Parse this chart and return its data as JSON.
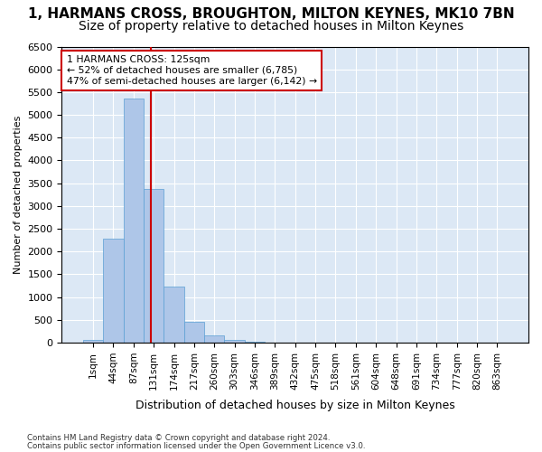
{
  "title1": "1, HARMANS CROSS, BROUGHTON, MILTON KEYNES, MK10 7BN",
  "title2": "Size of property relative to detached houses in Milton Keynes",
  "xlabel": "Distribution of detached houses by size in Milton Keynes",
  "ylabel": "Number of detached properties",
  "footer1": "Contains HM Land Registry data © Crown copyright and database right 2024.",
  "footer2": "Contains public sector information licensed under the Open Government Licence v3.0.",
  "bin_labels": [
    "1sqm",
    "44sqm",
    "87sqm",
    "131sqm",
    "174sqm",
    "217sqm",
    "260sqm",
    "303sqm",
    "346sqm",
    "389sqm",
    "432sqm",
    "475sqm",
    "518sqm",
    "561sqm",
    "604sqm",
    "648sqm",
    "691sqm",
    "734sqm",
    "777sqm",
    "820sqm",
    "863sqm"
  ],
  "bar_values": [
    60,
    2280,
    5350,
    3380,
    1230,
    460,
    160,
    70,
    20,
    5,
    2,
    1,
    1,
    0,
    0,
    0,
    0,
    0,
    0,
    0,
    0
  ],
  "bar_color": "#aec6e8",
  "bar_edge_color": "#5a9fd4",
  "vline_color": "#cc0000",
  "annotation_text": "1 HARMANS CROSS: 125sqm\n← 52% of detached houses are smaller (6,785)\n47% of semi-detached houses are larger (6,142) →",
  "annotation_box_color": "#cc0000",
  "ylim": [
    0,
    6500
  ],
  "yticks": [
    0,
    500,
    1000,
    1500,
    2000,
    2500,
    3000,
    3500,
    4000,
    4500,
    5000,
    5500,
    6000,
    6500
  ],
  "bg_color": "#dce8f5",
  "grid_color": "#ffffff",
  "title1_fontsize": 11,
  "title2_fontsize": 10
}
